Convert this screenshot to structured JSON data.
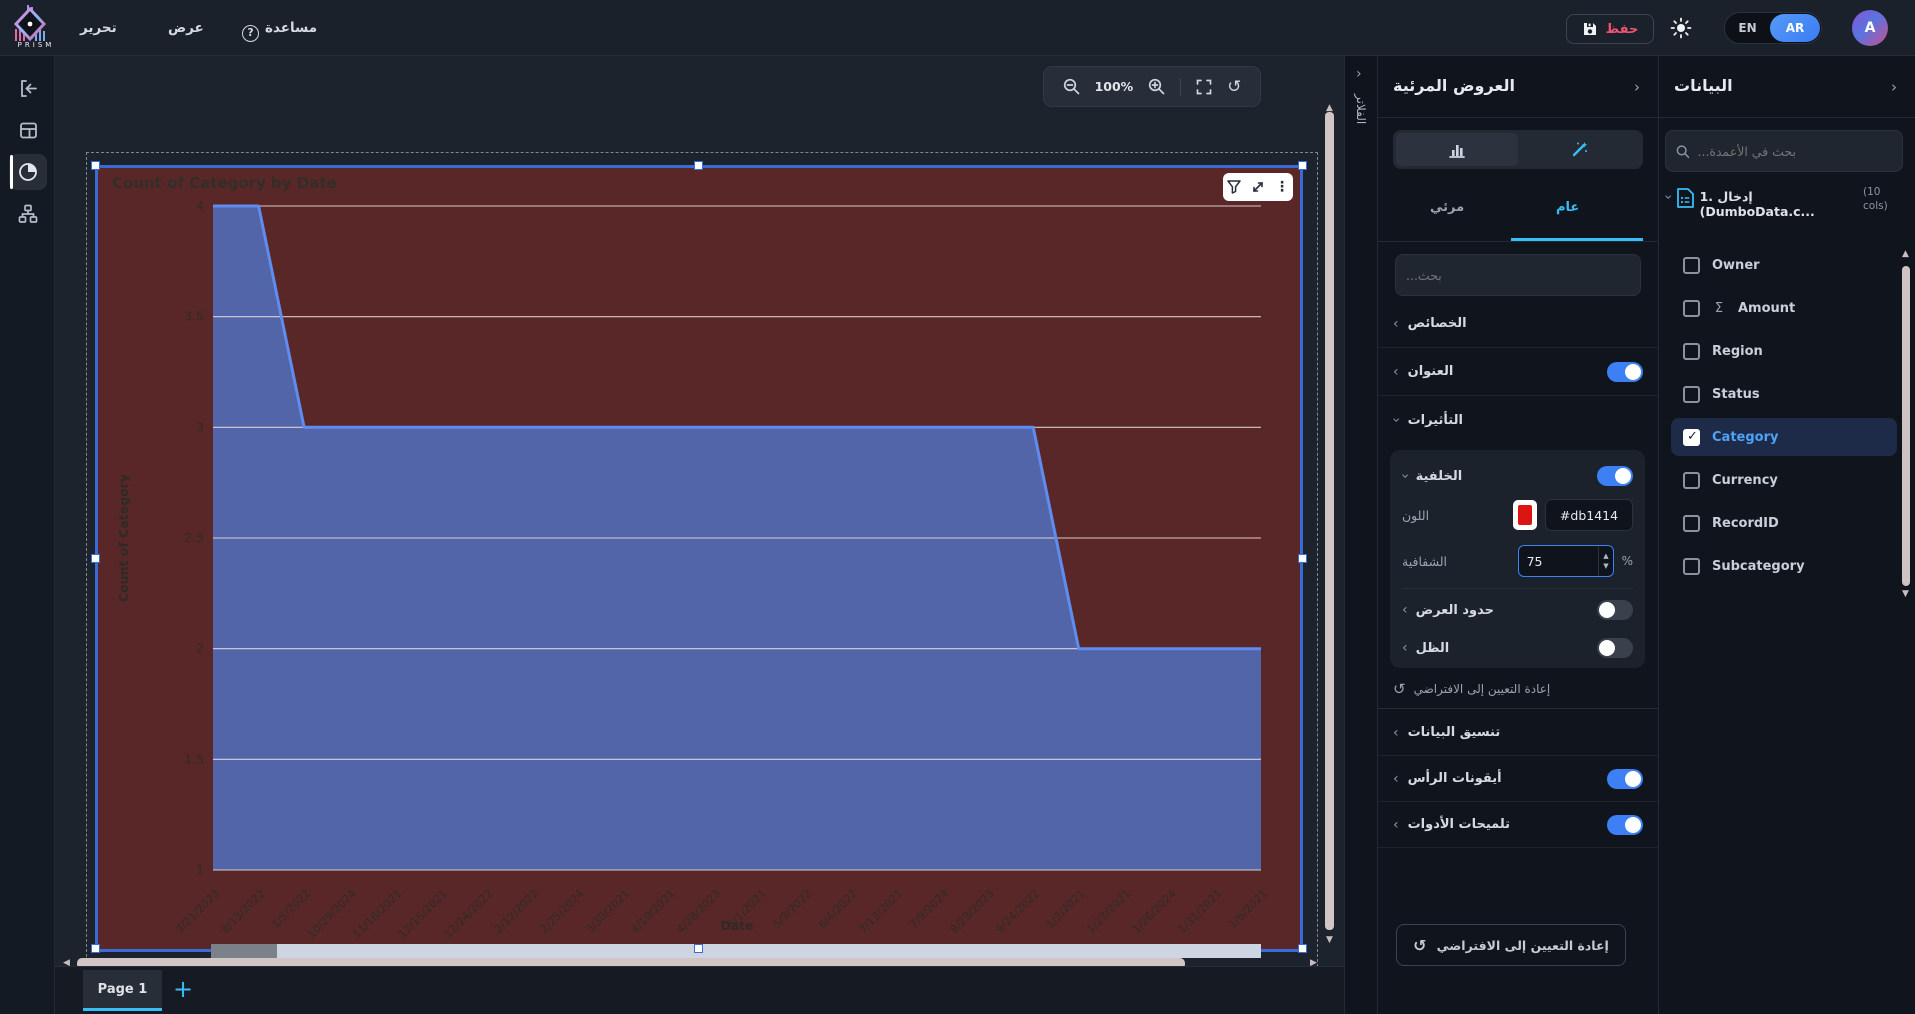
{
  "app": {
    "name": "PRISM"
  },
  "topbar": {
    "menu": [
      {
        "label": "تحرير"
      },
      {
        "label": "عرض"
      },
      {
        "label": "مساعدة"
      }
    ],
    "save_label": "حفظ",
    "lang": {
      "en": "EN",
      "ar": "AR",
      "active": "AR"
    },
    "avatar_letter": "A"
  },
  "canvas": {
    "zoom_level": "100%",
    "page_tab": "Page 1",
    "add_page_label": "+",
    "filters_label": "الفلاتر"
  },
  "chart_data": {
    "type": "area",
    "title": "Count of Category by Date",
    "xlabel": "Date",
    "ylabel": "Count of Category",
    "categories": [
      "3/21/2023",
      "8/13/2022",
      "1/5/2022",
      "10/29/2024",
      "11/16/2021",
      "12/15/2021",
      "12/24/2022",
      "2/12/2022",
      "2/25/2024",
      "3/30/2021",
      "4/10/2021",
      "4/28/2023",
      "5/1/2021",
      "5/9/2022",
      "6/4/2022",
      "7/13/2021",
      "7/9/2024",
      "8/23/2023",
      "9/24/2022",
      "1/2/2021",
      "1/23/2021",
      "1/26/2024",
      "1/31/2021",
      "1/6/2021"
    ],
    "values": [
      4,
      4,
      3,
      3,
      3,
      3,
      3,
      3,
      3,
      3,
      3,
      3,
      3,
      3,
      3,
      3,
      3,
      3,
      3,
      2,
      2,
      2,
      2,
      2
    ],
    "ylim": [
      1,
      4
    ],
    "yticks": [
      4,
      3.5,
      3,
      2.5,
      2,
      1.5,
      1
    ],
    "grid": true,
    "legend": "none",
    "colors": {
      "line": "#5e8cf0",
      "fill": "#5365a9",
      "background": "#5a2728",
      "grid": "#f1e3e3",
      "text": "#2e2b27"
    }
  },
  "viz_panel": {
    "title": "العروض المرئية",
    "tabs": {
      "visual": "مرئي",
      "general": "عام",
      "active": "عام"
    },
    "search_placeholder": "بحث...",
    "sections": {
      "properties": "الخصائص",
      "title_section": "العنوان",
      "title_enabled": true,
      "effects": "التأثيرات",
      "background": "الخلفية",
      "background_enabled": true,
      "color_label": "اللون",
      "color_value": "#db1414",
      "transparency_label": "الشفافية",
      "transparency_value": "75",
      "percent": "%",
      "borders": "حدود العرض",
      "borders_enabled": false,
      "shadow": "الظل",
      "shadow_enabled": false,
      "reset_link": "إعادة التعيين إلى الافتراضي",
      "data_format": "تنسيق البيانات",
      "header_icons": "أيقونات الرأس",
      "header_icons_enabled": true,
      "tooltips": "تلميحات الأدوات",
      "tooltips_enabled": true
    },
    "reset_button": "إعادة التعيين إلى الافتراضي"
  },
  "data_panel": {
    "title": "البيانات",
    "search_placeholder": "بحث في الأعمدة...",
    "dataset": {
      "name": "1. إدخال (DumboData.c...",
      "cols_badge": "(10 cols)"
    },
    "columns": [
      {
        "name": "Owner",
        "checked": false
      },
      {
        "name": "Amount",
        "checked": false,
        "icon": "sigma"
      },
      {
        "name": "Region",
        "checked": false
      },
      {
        "name": "Status",
        "checked": false
      },
      {
        "name": "Category",
        "checked": true,
        "selected": true
      },
      {
        "name": "Currency",
        "checked": false
      },
      {
        "name": "RecordID",
        "checked": false
      },
      {
        "name": "Subcategory",
        "checked": false
      }
    ]
  },
  "accent": {
    "blue": "#38bdf8",
    "toggle": "#3d7ff5",
    "save_pink": "#ef5571"
  }
}
